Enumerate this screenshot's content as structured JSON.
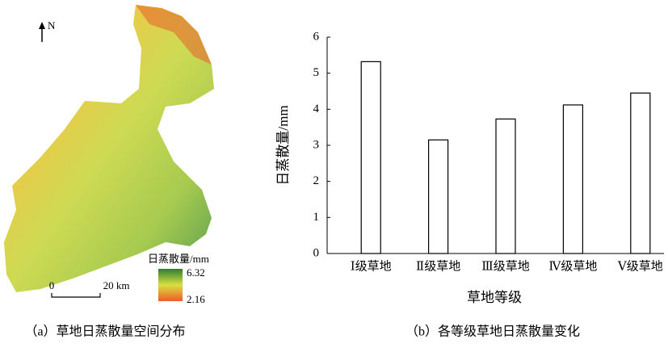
{
  "map": {
    "north": "N",
    "legend_title": "日蒸散量/mm",
    "legend_max": 6.32,
    "legend_min": 2.16,
    "scale_start": "0",
    "scale_end": "20 km"
  },
  "chart_data": {
    "type": "bar",
    "categories": [
      "Ⅰ级草地",
      "Ⅱ级草地",
      "Ⅲ级草地",
      "Ⅳ级草地",
      "Ⅴ级草地"
    ],
    "values": [
      5.32,
      3.15,
      3.73,
      4.12,
      4.45
    ],
    "color": "#ffffff",
    "edgecolor": "#000000",
    "xlabel": "草地等级",
    "ylabel": "日蒸散量/mm",
    "ylim": [
      0,
      6
    ],
    "yticks": [
      0,
      1,
      2,
      3,
      4,
      5,
      6
    ],
    "grid": false
  },
  "captions": [
    "（a）草地日蒸散量空间分布",
    "（b）各等级草地日蒸散量变化"
  ]
}
